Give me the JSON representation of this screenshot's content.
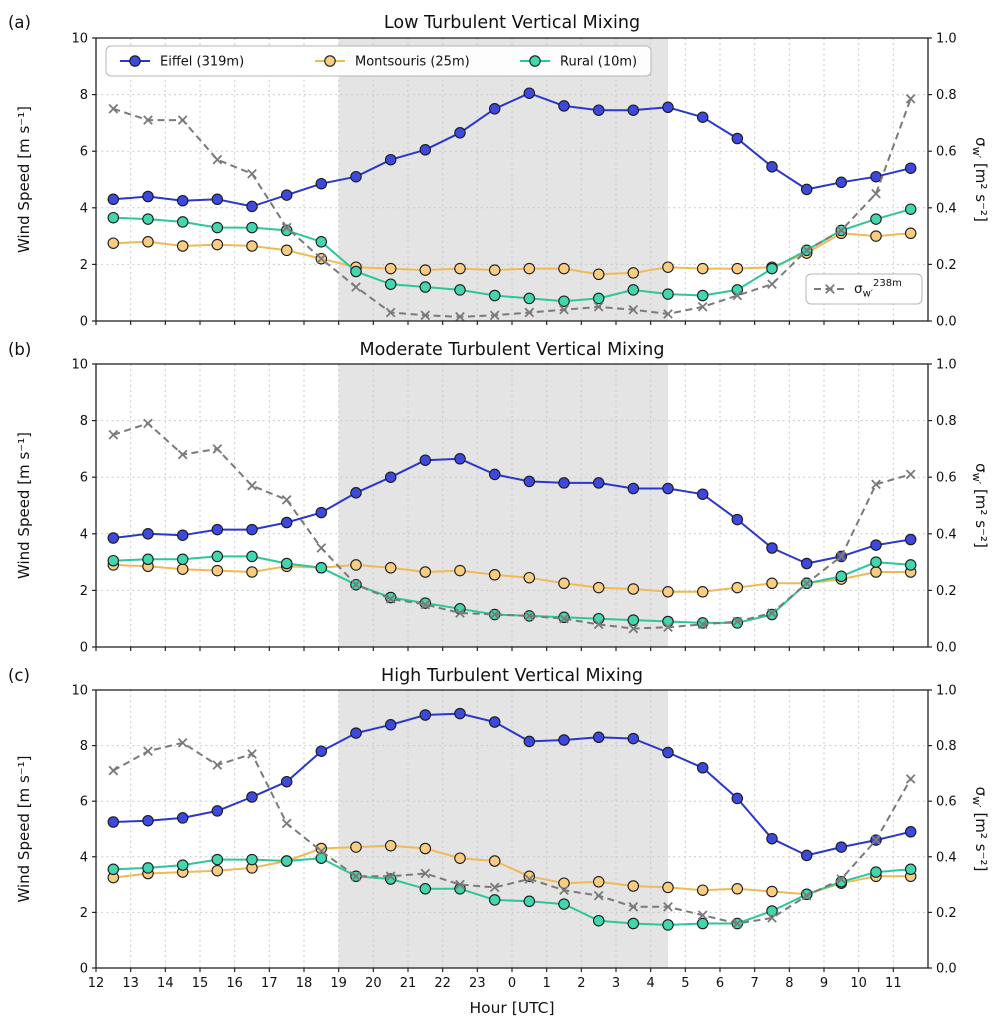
{
  "figure": {
    "xlabel": "Hour [UTC]",
    "x_tick_labels": [
      "12",
      "13",
      "14",
      "15",
      "16",
      "17",
      "18",
      "19",
      "20",
      "21",
      "22",
      "23",
      "0",
      "1",
      "2",
      "3",
      "4",
      "5",
      "6",
      "7",
      "8",
      "9",
      "10",
      "11"
    ],
    "x_hours": [
      12.5,
      13.5,
      14.5,
      15.5,
      16.5,
      17.5,
      18.5,
      19.5,
      20.5,
      21.5,
      22.5,
      23.5,
      24.5,
      25.5,
      26.5,
      27.5,
      28.5,
      29.5,
      30.5,
      31.5,
      32.5,
      33.5,
      34.5,
      35.5
    ],
    "x_range": [
      12,
      36
    ],
    "y_ticks_left": [
      "0",
      "2",
      "4",
      "6",
      "8",
      "10"
    ],
    "y_ticks_right": [
      "0.0",
      "0.2",
      "0.4",
      "0.6",
      "0.8",
      "1.0"
    ],
    "ylabel_left": "Wind Speed [m s⁻¹]",
    "ylabel_right_sym": "σ",
    "ylabel_right_sub": "w′",
    "ylabel_right_unit": " [m² s⁻²]",
    "sigma_legend_sym": "σ",
    "sigma_legend_sub": "w′",
    "sigma_legend_sup": "238m",
    "night_shade_hours": [
      19,
      28.5
    ],
    "grid": true,
    "legend_position": "upper left",
    "colors": {
      "eiffel": "#2b35cf",
      "eiffel_fill": "#3d49dd",
      "montsouris": "#f0b954",
      "montsouris_fill": "#f8cd82",
      "rural": "#2bc79a",
      "rural_fill": "#41d6ae",
      "sigma": "#7a7a7a",
      "shade": "#e4e4e4",
      "marker_edge": "#1a1a1a"
    }
  },
  "chart_data": [
    {
      "type": "line",
      "panel_label": "(a)",
      "title": "Low Turbulent Vertical Mixing",
      "ylim_left": [
        0,
        10
      ],
      "ylim_right": [
        0.0,
        1.0
      ],
      "series": [
        {
          "key": "eiffel",
          "name": "Eiffel (319m)",
          "axis": "left",
          "color": "#2b35cf",
          "fill": "#3d49dd",
          "values": [
            4.3,
            4.4,
            4.25,
            4.3,
            4.05,
            4.45,
            4.85,
            5.1,
            5.7,
            6.05,
            6.65,
            7.5,
            8.05,
            7.6,
            7.45,
            7.45,
            7.55,
            7.2,
            6.45,
            5.45,
            4.65,
            4.9,
            5.1,
            5.4
          ]
        },
        {
          "key": "montsouris",
          "name": "Montsouris (25m)",
          "axis": "left",
          "color": "#f0b954",
          "fill": "#f8cd82",
          "values": [
            2.75,
            2.8,
            2.65,
            2.7,
            2.65,
            2.5,
            2.2,
            1.9,
            1.85,
            1.8,
            1.85,
            1.8,
            1.85,
            1.85,
            1.65,
            1.7,
            1.9,
            1.85,
            1.85,
            1.9,
            2.4,
            3.1,
            3.0,
            3.1
          ]
        },
        {
          "key": "rural",
          "name": "Rural (10m)",
          "axis": "left",
          "color": "#2bc79a",
          "fill": "#41d6ae",
          "values": [
            3.65,
            3.6,
            3.5,
            3.3,
            3.3,
            3.2,
            2.8,
            1.75,
            1.3,
            1.2,
            1.1,
            0.9,
            0.8,
            0.7,
            0.8,
            1.1,
            0.95,
            0.9,
            1.1,
            1.85,
            2.5,
            3.2,
            3.6,
            3.95
          ]
        },
        {
          "key": "sigma-238m",
          "name": "σ_w′ 238m",
          "axis": "right",
          "color": "#7a7a7a",
          "values": [
            0.75,
            0.71,
            0.71,
            0.57,
            0.52,
            0.33,
            0.22,
            0.12,
            0.03,
            0.02,
            0.015,
            0.02,
            0.03,
            0.04,
            0.05,
            0.04,
            0.025,
            0.05,
            0.09,
            0.13,
            0.25,
            0.32,
            0.45,
            0.785
          ]
        }
      ]
    },
    {
      "type": "line",
      "panel_label": "(b)",
      "title": "Moderate Turbulent Vertical Mixing",
      "ylim_left": [
        0,
        10
      ],
      "ylim_right": [
        0.0,
        1.0
      ],
      "series": [
        {
          "key": "eiffel",
          "name": "Eiffel (319m)",
          "axis": "left",
          "color": "#2b35cf",
          "fill": "#3d49dd",
          "values": [
            3.85,
            4.0,
            3.95,
            4.15,
            4.15,
            4.4,
            4.75,
            5.45,
            6.0,
            6.6,
            6.65,
            6.1,
            5.85,
            5.8,
            5.8,
            5.6,
            5.6,
            5.4,
            4.5,
            3.5,
            2.95,
            3.2,
            3.6,
            3.8
          ]
        },
        {
          "key": "montsouris",
          "name": "Montsouris (25m)",
          "axis": "left",
          "color": "#f0b954",
          "fill": "#f8cd82",
          "values": [
            2.9,
            2.85,
            2.75,
            2.7,
            2.65,
            2.85,
            2.8,
            2.9,
            2.8,
            2.65,
            2.7,
            2.55,
            2.45,
            2.25,
            2.1,
            2.05,
            1.95,
            1.95,
            2.1,
            2.25,
            2.25,
            2.4,
            2.65,
            2.65
          ]
        },
        {
          "key": "rural",
          "name": "Rural (10m)",
          "axis": "left",
          "color": "#2bc79a",
          "fill": "#41d6ae",
          "values": [
            3.05,
            3.1,
            3.1,
            3.2,
            3.2,
            2.95,
            2.8,
            2.2,
            1.75,
            1.55,
            1.35,
            1.15,
            1.1,
            1.05,
            1.0,
            0.95,
            0.9,
            0.85,
            0.85,
            1.15,
            2.25,
            2.5,
            3.0,
            2.9
          ]
        },
        {
          "key": "sigma-238m",
          "name": "σ_w′ 238m",
          "axis": "right",
          "color": "#7a7a7a",
          "values": [
            0.75,
            0.79,
            0.68,
            0.7,
            0.57,
            0.52,
            0.35,
            0.22,
            0.17,
            0.15,
            0.12,
            0.115,
            0.11,
            0.1,
            0.08,
            0.065,
            0.07,
            0.08,
            0.09,
            0.12,
            0.225,
            0.32,
            0.575,
            0.61
          ]
        }
      ]
    },
    {
      "type": "line",
      "panel_label": "(c)",
      "title": "High Turbulent Vertical Mixing",
      "ylim_left": [
        0,
        10
      ],
      "ylim_right": [
        0.0,
        1.0
      ],
      "series": [
        {
          "key": "eiffel",
          "name": "Eiffel (319m)",
          "axis": "left",
          "color": "#2b35cf",
          "fill": "#3d49dd",
          "values": [
            5.25,
            5.3,
            5.4,
            5.65,
            6.15,
            6.7,
            7.8,
            8.45,
            8.75,
            9.1,
            9.15,
            8.85,
            8.15,
            8.2,
            8.3,
            8.25,
            7.75,
            7.2,
            6.1,
            4.65,
            4.05,
            4.35,
            4.6,
            4.9
          ]
        },
        {
          "key": "montsouris",
          "name": "Montsouris (25m)",
          "axis": "left",
          "color": "#f0b954",
          "fill": "#f8cd82",
          "values": [
            3.25,
            3.4,
            3.45,
            3.5,
            3.6,
            3.85,
            4.3,
            4.35,
            4.4,
            4.3,
            3.95,
            3.85,
            3.3,
            3.05,
            3.1,
            2.95,
            2.9,
            2.8,
            2.85,
            2.75,
            2.65,
            3.05,
            3.3,
            3.3
          ]
        },
        {
          "key": "rural",
          "name": "Rural (10m)",
          "axis": "left",
          "color": "#2bc79a",
          "fill": "#41d6ae",
          "values": [
            3.55,
            3.6,
            3.7,
            3.9,
            3.9,
            3.85,
            3.95,
            3.3,
            3.2,
            2.85,
            2.85,
            2.45,
            2.4,
            2.3,
            1.7,
            1.6,
            1.55,
            1.6,
            1.6,
            2.05,
            2.65,
            3.1,
            3.45,
            3.55
          ]
        },
        {
          "key": "sigma-238m",
          "name": "σ_w′ 238m",
          "axis": "right",
          "color": "#7a7a7a",
          "values": [
            0.71,
            0.78,
            0.81,
            0.73,
            0.77,
            0.52,
            0.42,
            0.33,
            0.33,
            0.34,
            0.3,
            0.29,
            0.32,
            0.28,
            0.26,
            0.22,
            0.22,
            0.19,
            0.16,
            0.18,
            0.26,
            0.32,
            0.46,
            0.68
          ]
        }
      ]
    }
  ]
}
